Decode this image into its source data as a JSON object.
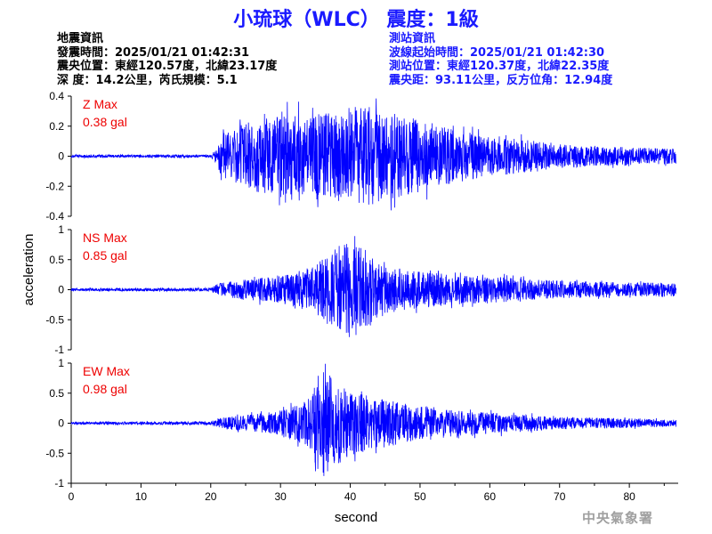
{
  "title": "小琉球（WLC） 震度：1級",
  "earthquake_info": {
    "heading": "地震資訊",
    "origin_time": "發震時間：2025/01/21 01:42:31",
    "epicenter": "震央位置：東經120.57度，北緯23.17度",
    "depth_magnitude": "深   度：14.2公里，芮氏規模：5.1"
  },
  "station_info": {
    "heading": "測站資訊",
    "wave_start": "波線起始時間：2025/01/21 01:42:30",
    "station_location": "測站位置：東經120.37度，北緯22.35度",
    "distance_azimuth": "震央距：93.11公里，反方位角：12.94度"
  },
  "footer_mark": "中央氣象署",
  "colors": {
    "trace": "#0000ff",
    "title": "#1a1aff",
    "max_label": "#ee0000",
    "axis": "#000000"
  },
  "chart_data": {
    "type": "line",
    "xlabel": "second",
    "ylabel": "acceleration",
    "xlim": [
      0,
      87
    ],
    "xticks": [
      0,
      10,
      20,
      30,
      40,
      50,
      60,
      70,
      80
    ],
    "grid": false,
    "panels": [
      {
        "component": "Z",
        "max_label": "Z Max",
        "max_value": "0.38 gal",
        "ylim": [
          -0.4,
          0.4
        ],
        "yticks": [
          0.4,
          0.2,
          0,
          -0.2,
          -0.4
        ],
        "yticklabels": [
          "0.4",
          "0.2",
          "0",
          "-0.2",
          "-0.4"
        ],
        "envelope_x": [
          0,
          20,
          21,
          21.5,
          25,
          30,
          35,
          40,
          43,
          45,
          50,
          55,
          60,
          70,
          80,
          86
        ],
        "envelope_y": [
          0.01,
          0.01,
          0.06,
          0.15,
          0.22,
          0.28,
          0.28,
          0.3,
          0.34,
          0.3,
          0.24,
          0.18,
          0.14,
          0.08,
          0.06,
          0.05
        ]
      },
      {
        "component": "NS",
        "max_label": "NS Max",
        "max_value": "0.85 gal",
        "ylim": [
          -1,
          1
        ],
        "yticks": [
          1,
          0.5,
          0,
          -0.5,
          -1
        ],
        "yticklabels": [
          "1",
          "0.5",
          "0",
          "-0.5",
          "-1"
        ],
        "envelope_x": [
          0,
          20,
          21,
          25,
          30,
          35,
          38,
          40,
          43,
          45,
          50,
          55,
          60,
          70,
          80,
          86
        ],
        "envelope_y": [
          0.02,
          0.03,
          0.1,
          0.18,
          0.22,
          0.4,
          0.72,
          0.82,
          0.6,
          0.4,
          0.3,
          0.25,
          0.22,
          0.15,
          0.12,
          0.12
        ]
      },
      {
        "component": "EW",
        "max_label": "EW Max",
        "max_value": "0.98 gal",
        "ylim": [
          -1,
          1
        ],
        "yticks": [
          1,
          0.5,
          0,
          -0.5,
          -1
        ],
        "yticklabels": [
          "1",
          "0.5",
          "0",
          "-0.5",
          "-1"
        ],
        "envelope_x": [
          0,
          20,
          21,
          25,
          30,
          34,
          36,
          38,
          40,
          43,
          45,
          50,
          55,
          60,
          70,
          80,
          86
        ],
        "envelope_y": [
          0.02,
          0.03,
          0.08,
          0.14,
          0.2,
          0.4,
          0.95,
          0.7,
          0.55,
          0.45,
          0.4,
          0.3,
          0.22,
          0.18,
          0.1,
          0.08,
          0.06
        ]
      }
    ]
  }
}
